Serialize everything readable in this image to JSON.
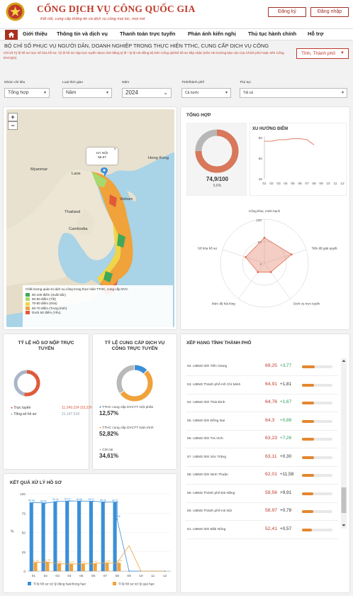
{
  "header": {
    "title": "CỔNG DỊCH VỤ CÔNG QUỐC GIA",
    "subtitle": "Kết nối, cung cấp thông tin và dịch vụ công mọi lúc, mọi nơi",
    "register_label": "Đăng ký",
    "login_label": "Đăng nhập"
  },
  "nav": {
    "items": [
      "Giới thiệu",
      "Thông tin và dịch vụ",
      "Thanh toán trực tuyến",
      "Phản ánh kiến nghị",
      "Thủ tục hành chính",
      "Hỗ trợ"
    ]
  },
  "page": {
    "title": "BỘ CHỈ SỐ PHỤC VỤ NGƯỜI DÂN, DOANH NGHIỆP TRONG THỰC HIỆN TTHC, CUNG CẤP DỊCH VỤ CÔNG",
    "note": "Chỉ số Tỷ lệ hồ sơ trực số hóa hồ sơ, Tỷ lệ hồ sơ nộp trực tuyến được tính bằng tỷ lệ * tỷ lệ HS đồng bộ trên Cổng Q0/Số hồ sơ tiếp nhận (trên HS trường báo cáo của Chính phủ hoặc trên Cổng DVCQG)",
    "province_select": "Tỉnh, Thành phố"
  },
  "filters": [
    {
      "label": "Nhóm chỉ tiêu",
      "value": "Tổng hợp"
    },
    {
      "label": "Loại thời gian",
      "value": "Năm"
    },
    {
      "label": "Năm",
      "value": "2024"
    },
    {
      "label": "Tỉnh/thành phố",
      "value": "Cả nước"
    },
    {
      "label": "Thủ tục",
      "value": "Tất cả"
    }
  ],
  "map": {
    "zoom_in": "+",
    "zoom_out": "−",
    "popup_name": "HÀ NỘI",
    "popup_value": "58.97",
    "labels": [
      "Myanmar",
      "Hong Kong",
      "Laos",
      "Thailand",
      "Cambodia",
      "Vietnam"
    ],
    "legend_title": "Chất lượng quản trị dịch vụ công trong thực hiện TTHC, cung cấp DVC",
    "legend": [
      {
        "label": "90-100 điểm (Xuất sắc)",
        "color": "#3fa85b"
      },
      {
        "label": "80-90 điểm (Tốt)",
        "color": "#a9d86e"
      },
      {
        "label": "70-80 điểm (Khá)",
        "color": "#f1d548"
      },
      {
        "label": "50-70 điểm (Trung bình)",
        "color": "#f0a23b"
      },
      {
        "label": "Dưới 50 điểm (Yếu)",
        "color": "#e05a3a"
      }
    ]
  },
  "summary": {
    "title": "TỔNG HỢP",
    "score": "74,9/100",
    "sub": "5,6%",
    "score_pct": 74.9,
    "trend_title": "XU HƯỚNG ĐIỂM"
  },
  "nop": {
    "title": "TỶ LỆ HỒ SƠ NỘP TRỰC TUYẾN",
    "items": [
      {
        "label": "Trực tuyến",
        "value": "11.249.224 (53,33%)",
        "color": "#e05a3a"
      },
      {
        "label": "Tổng số hồ sơ",
        "value": "21.147.518",
        "color": "#aab6c8"
      }
    ]
  },
  "cdv": {
    "title": "TỶ LỆ CUNG CẤP DỊCH VỤ CÔNG TRỰC TUYẾN",
    "items": [
      {
        "label": "TTHC cung cấp DVCTT một phần",
        "value": "12,57%",
        "color": "#3a8fd8"
      },
      {
        "label": "TTHC cung cấp DVCTT toàn trình",
        "value": "52,82%",
        "color": "#f0a23b"
      },
      {
        "label": "Còn lại",
        "value": "34,61%",
        "color": "#b9b9b9"
      }
    ]
  },
  "ranking": {
    "title": "XẾP HẠNG TỈNH/ THÀNH PHỐ",
    "rows": [
      {
        "name": "52. UBND tỉnh Tiền Giang",
        "score": "69,25",
        "delta": "+3,77",
        "up": true,
        "pct": 69.25
      },
      {
        "name": "53. UBND Thành phố Hồ Chí Minh",
        "score": "64,91",
        "delta": "+1,81",
        "up": false,
        "pct": 64.91
      },
      {
        "name": "54. UBND tỉnh Thái Bình",
        "score": "64,76",
        "delta": "+1,67",
        "up": true,
        "pct": 64.76
      },
      {
        "name": "55. UBND tỉnh Đồng Nai",
        "score": "64,3",
        "delta": "+0,88",
        "up": true,
        "pct": 64.3
      },
      {
        "name": "56. UBND tỉnh Trà Vinh",
        "score": "63,23",
        "delta": "+7,26",
        "up": true,
        "pct": 63.23
      },
      {
        "name": "57. UBND tỉnh Sóc Trăng",
        "score": "63,11",
        "delta": "+0,30",
        "up": false,
        "pct": 63.11
      },
      {
        "name": "58. UBND tỉnh Ninh Thuận",
        "score": "62,01",
        "delta": "+11,58",
        "up": false,
        "pct": 62.01
      },
      {
        "name": "59. UBND Thành phố Đà Nẵng",
        "score": "59,56",
        "delta": "+9,91",
        "up": false,
        "pct": 59.56
      },
      {
        "name": "60. UBND Thành phố Hà Nội",
        "score": "58,97",
        "delta": "+0,78",
        "up": false,
        "pct": 58.97
      },
      {
        "name": "61. UBND tỉnh Đắk Nông",
        "score": "52,41",
        "delta": "+0,57",
        "up": false,
        "pct": 52.41
      }
    ]
  },
  "chart_data": [
    {
      "type": "line",
      "title": "XU HƯỚNG ĐIỂM",
      "x": [
        "01",
        "02",
        "03",
        "04",
        "05",
        "06",
        "07",
        "08",
        "09",
        "10",
        "11",
        "12"
      ],
      "series": [
        {
          "values": [
            76.5,
            76.5,
            78,
            78,
            79,
            79,
            78,
            73,
            null,
            null,
            null,
            null
          ]
        }
      ],
      "ylim": [
        40,
        80
      ],
      "yticks": [
        80,
        60,
        40
      ],
      "color": "#e07055"
    },
    {
      "type": "radar",
      "axes": [
        "Công khai, minh bạch",
        "Tiến độ giải quyết",
        "Dịch vụ trực tuyến",
        "Mức độ hài lòng",
        "Số hóa hồ sơ"
      ],
      "values": [
        58,
        65,
        25,
        25,
        45
      ],
      "rlim": [
        0,
        100
      ],
      "rticks": [
        "100",
        "50",
        "0"
      ],
      "color": "#e07055"
    },
    {
      "type": "bar",
      "title": "KẾT QUẢ XỬ LÝ HỒ SƠ",
      "ylabel": "%",
      "categories": [
        "01",
        "02",
        "03",
        "04",
        "05",
        "06",
        "07",
        "08",
        "09",
        "10",
        "11",
        "12"
      ],
      "ylim": [
        0,
        100
      ],
      "yticks": [
        0,
        25,
        50,
        75,
        100
      ],
      "series": [
        {
          "name": "Tỉ lệ hồ sơ xử lý đúng hạn/trong hạn",
          "color": "#3a8fd8",
          "values": [
            88.94,
            88.04,
            90.16,
            90.77,
            90.59,
            90.37,
            89.41,
            89.21,
            null,
            null,
            null,
            null
          ],
          "labels": [
            "88,94",
            "88,04",
            "90,16",
            "90,77",
            "90,59",
            "90,37",
            "89,41",
            "89,21",
            "",
            "",
            "",
            ""
          ]
        },
        {
          "name": "Tỉ lệ hồ sơ xử lý quá hạn",
          "color": "#f0a23b",
          "values": [
            11.06,
            11.96,
            9.84,
            9.23,
            9.41,
            9.63,
            10.59,
            10.79,
            null,
            null,
            null,
            null
          ],
          "labels": [
            "11,06",
            "11,96",
            "9,84",
            "9,23",
            "9,41",
            "9,63",
            "10,59",
            "10,79",
            "",
            "",
            "",
            ""
          ]
        }
      ],
      "line_points": [
        [
          8,
          66.9
        ],
        [
          9,
          0
        ],
        [
          12,
          0
        ]
      ],
      "line_labels": [
        "66,93",
        "",
        ""
      ]
    }
  ]
}
